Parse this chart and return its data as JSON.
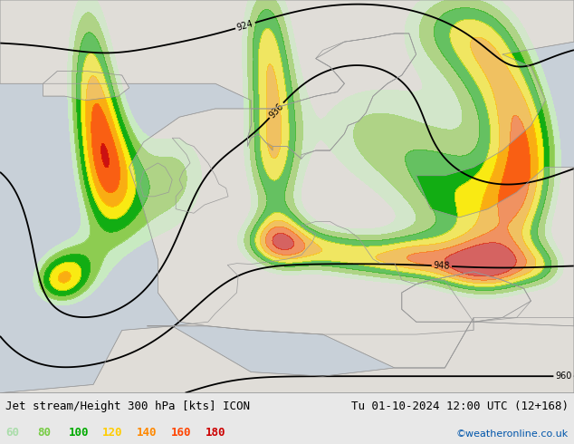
{
  "title_left": "Jet stream/Height 300 hPa [kts] ICON",
  "title_right": "Tu 01-10-2024 12:00 UTC (12+168)",
  "credit": "©weatheronline.co.uk",
  "legend_values": [
    "60",
    "80",
    "100",
    "120",
    "140",
    "160",
    "180"
  ],
  "legend_colors": [
    "#aaddaa",
    "#77cc44",
    "#00aa00",
    "#ffcc00",
    "#ff8800",
    "#ff4400",
    "#cc0000"
  ],
  "bg_color": "#e8e8e8",
  "land_color": "#e0ddd8",
  "sea_color": "#c8d0d8",
  "contour_color": "#000000",
  "credit_color": "#0055aa",
  "bottom_bar_color": "#e8e8e8",
  "jet_colors": [
    "#c8eec0",
    "#88cc44",
    "#00aa00",
    "#ffee00",
    "#ffaa00",
    "#ff5500",
    "#cc0000"
  ],
  "jet_levels": [
    60,
    80,
    100,
    120,
    140,
    160,
    180,
    220
  ]
}
